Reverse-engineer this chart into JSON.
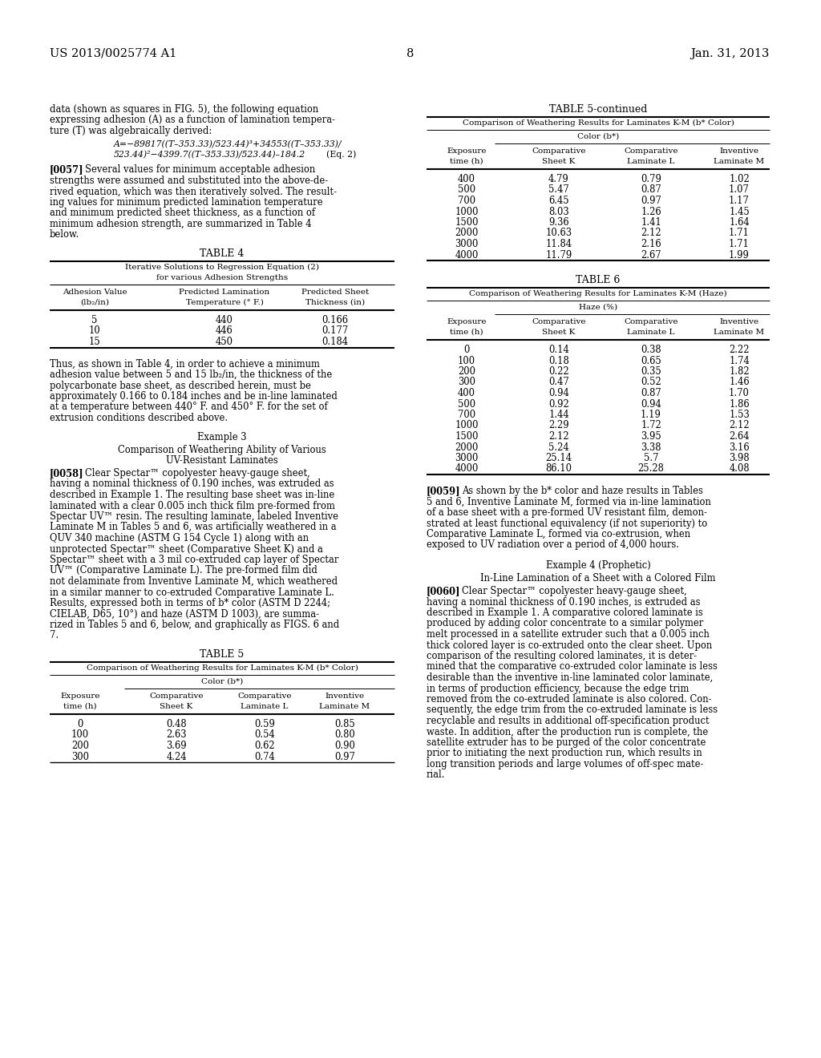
{
  "page_header_left": "US 2013/0025774 A1",
  "page_header_right": "Jan. 31, 2013",
  "page_number": "8",
  "background_color": "#ffffff",
  "text_color": "#000000"
}
